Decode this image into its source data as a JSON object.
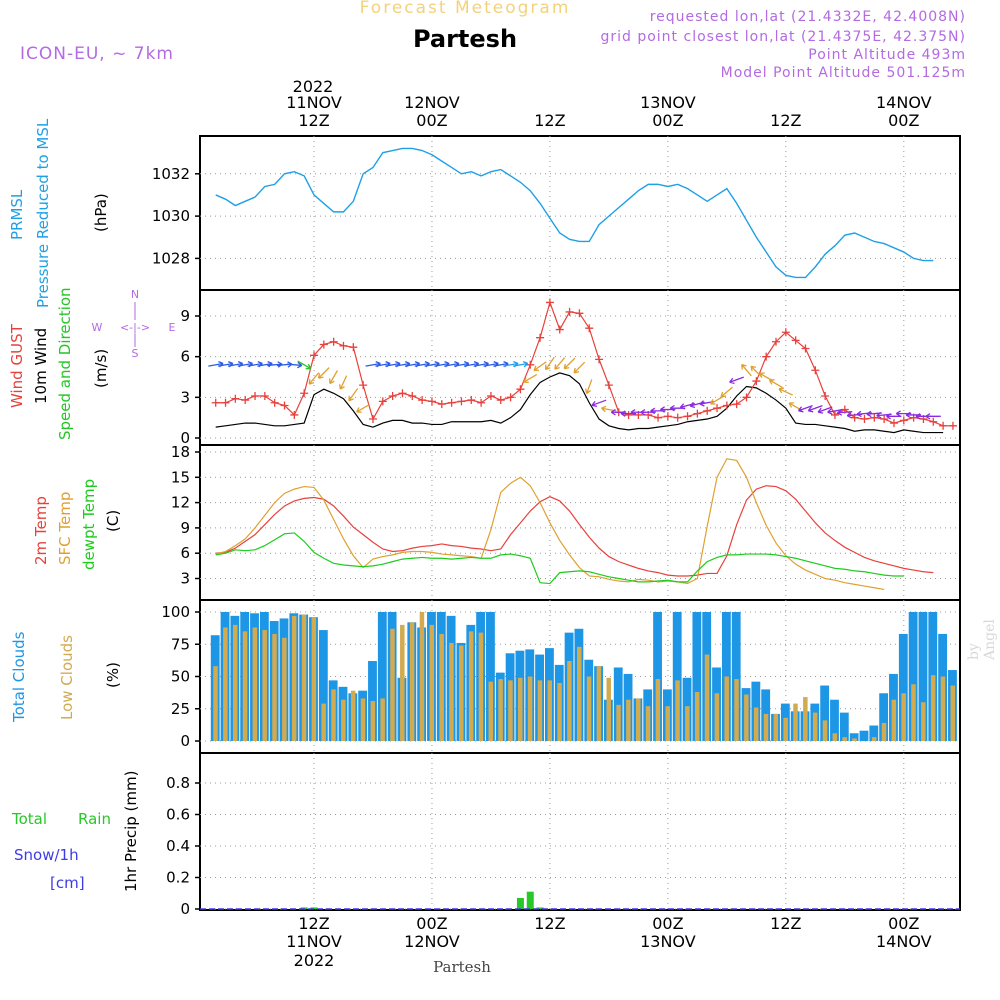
{
  "header": {
    "subtitle": "Forecast Meteogram",
    "location": "Partesh",
    "model": "ICON-EU, ~ 7km",
    "requested": "requested lon,lat (21.4332E, 42.4008N)",
    "grid_point": "grid point closest lon,lat (21.4375E, 42.375N)",
    "point_altitude": "Point Altitude 493m",
    "model_altitude": "Model Point Altitude 501.125m",
    "footer_location": "Partesh",
    "byline": "by Angel"
  },
  "time_axis": {
    "top_year": "2022",
    "top_labels": [
      {
        "t": 15,
        "line1": "11NOV",
        "line2": "12Z"
      },
      {
        "t": 27,
        "line1": "12NOV",
        "line2": "00Z"
      },
      {
        "t": 39,
        "line1": "",
        "line2": "12Z"
      },
      {
        "t": 51,
        "line1": "13NOV",
        "line2": "00Z"
      },
      {
        "t": 63,
        "line1": "",
        "line2": "12Z"
      },
      {
        "t": 75,
        "line1": "14NOV",
        "line2": "00Z"
      }
    ],
    "bottom_labels": [
      {
        "t": 15,
        "line1": "12Z",
        "line2": "11NOV",
        "line3": "2022"
      },
      {
        "t": 27,
        "line1": "00Z",
        "line2": "12NOV",
        "line3": ""
      },
      {
        "t": 39,
        "line1": "12Z",
        "line2": "",
        "line3": ""
      },
      {
        "t": 51,
        "line1": "00Z",
        "line2": "13NOV",
        "line3": ""
      },
      {
        "t": 63,
        "line1": "12Z",
        "line2": "",
        "line3": ""
      },
      {
        "t": 75,
        "line1": "00Z",
        "line2": "14NOV",
        "line3": ""
      }
    ]
  },
  "colors": {
    "pressure": "#1ea0e6",
    "gust": "#e8413c",
    "wind": "#000000",
    "direction": "#24c624",
    "temp": "#e8413c",
    "sfc": "#e0a030",
    "dewpt": "#1ccc1c",
    "total_clouds": "#1e96e6",
    "low_clouds": "#d2aa50",
    "rain": "#28c828",
    "snow": "#3c3ce6",
    "compass": "#b36ae2"
  },
  "panels": {
    "pressure": {
      "labels": [
        "PRMSL",
        "Pressure Reduced to MSL"
      ],
      "unit": "(hPa)"
    },
    "wind": {
      "labels": [
        "Wind GUST",
        "10m Wind",
        "Speed and Direction"
      ],
      "unit": "(m/s)",
      "compass": {
        "n": "N",
        "s": "S",
        "w": "W",
        "e": "E",
        "arrows": "<-|->"
      }
    },
    "temp": {
      "labels": [
        "2m Temp",
        "SFC Temp",
        "dewpt Temp"
      ],
      "unit": "(C)"
    },
    "clouds": {
      "labels": [
        "Total Clouds",
        "Low Clouds"
      ],
      "unit": "(%)"
    },
    "precip": {
      "labels": [
        "Total",
        "Rain",
        "Snow/1h",
        "[cm]"
      ],
      "ylabel": "1hr Precip (mm)"
    }
  },
  "chart_data": [
    {
      "type": "line",
      "title": "PRMSL Pressure Reduced to MSL",
      "ylabel": "(hPa)",
      "ylim": [
        1026.8,
        1033.5
      ],
      "yticks": [
        1028,
        1030,
        1032
      ],
      "x_start": 5,
      "x_step": 1,
      "series": [
        {
          "name": "PRMSL",
          "values": [
            1031.0,
            1030.8,
            1030.5,
            1030.7,
            1030.9,
            1031.4,
            1031.5,
            1032.0,
            1032.1,
            1031.9,
            1031.0,
            1030.6,
            1030.2,
            1030.2,
            1030.7,
            1032.0,
            1032.3,
            1033.0,
            1033.1,
            1033.2,
            1033.2,
            1033.1,
            1032.9,
            1032.6,
            1032.3,
            1032.0,
            1032.1,
            1031.9,
            1032.1,
            1032.2,
            1031.9,
            1031.6,
            1031.2,
            1030.6,
            1029.9,
            1029.2,
            1028.9,
            1028.8,
            1028.8,
            1029.6,
            1030.0,
            1030.4,
            1030.8,
            1031.2,
            1031.5,
            1031.5,
            1031.4,
            1031.5,
            1031.3,
            1031.0,
            1030.7,
            1031.0,
            1031.3,
            1030.6,
            1029.8,
            1029.0,
            1028.3,
            1027.6,
            1027.2,
            1027.1,
            1027.1,
            1027.6,
            1028.2,
            1028.6,
            1029.1,
            1029.2,
            1029.0,
            1028.8,
            1028.7,
            1028.5,
            1028.3,
            1028.0,
            1027.9,
            1027.9
          ]
        }
      ]
    },
    {
      "type": "line",
      "title": "Wind GUST / 10m Wind Speed and Direction",
      "ylabel": "(m/s)",
      "ylim": [
        0,
        10.6
      ],
      "yticks": [
        0,
        3,
        6,
        9
      ],
      "x_start": 5,
      "x_step": 1,
      "series": [
        {
          "name": "Wind GUST",
          "values": [
            2.6,
            2.6,
            2.9,
            2.8,
            3.1,
            3.1,
            2.6,
            2.4,
            1.7,
            3.3,
            6.1,
            6.9,
            7.1,
            6.8,
            6.7,
            3.9,
            1.4,
            2.7,
            3.1,
            3.3,
            3.1,
            2.8,
            2.7,
            2.5,
            2.6,
            2.7,
            2.8,
            2.6,
            3.1,
            2.8,
            3.0,
            3.6,
            5.4,
            7.4,
            10.0,
            8.0,
            9.3,
            9.2,
            8.1,
            5.8,
            3.9,
            1.9,
            1.7,
            1.7,
            1.7,
            1.5,
            1.6,
            1.5,
            1.6,
            1.8,
            2.0,
            2.2,
            2.4,
            2.5,
            3.0,
            4.2,
            6.0,
            7.1,
            7.8,
            7.2,
            6.6,
            5.0,
            3.1,
            1.7,
            2.1,
            1.5,
            1.4,
            1.5,
            1.4,
            1.1,
            1.3,
            1.5,
            1.4,
            1.2,
            0.9,
            0.9
          ]
        },
        {
          "name": "10m Wind",
          "values": [
            0.8,
            0.9,
            1.0,
            1.1,
            1.1,
            1.0,
            0.9,
            0.9,
            1.0,
            1.1,
            3.2,
            3.6,
            3.3,
            2.9,
            2.0,
            1.0,
            0.8,
            1.1,
            1.3,
            1.3,
            1.1,
            1.1,
            1.0,
            1.0,
            1.2,
            1.2,
            1.2,
            1.2,
            1.3,
            1.1,
            1.5,
            2.1,
            3.2,
            4.1,
            4.5,
            4.8,
            4.6,
            4.0,
            2.6,
            1.4,
            0.9,
            0.7,
            0.6,
            0.7,
            0.7,
            0.8,
            0.9,
            1.0,
            1.2,
            1.3,
            1.4,
            1.6,
            2.2,
            3.1,
            3.8,
            3.7,
            3.3,
            2.8,
            2.2,
            1.1,
            1.0,
            1.0,
            0.9,
            0.8,
            0.7,
            0.5,
            0.6,
            0.6,
            0.5,
            0.4,
            0.6,
            0.5,
            0.4,
            0.4,
            0.4
          ]
        }
      ]
    },
    {
      "type": "line",
      "title": "2m Temp / SFC Temp / dewpt Temp",
      "ylabel": "(C)",
      "ylim": [
        1,
        18.5
      ],
      "yticks": [
        3,
        6,
        9,
        12,
        15,
        18
      ],
      "x_start": 5,
      "x_step": 1,
      "series": [
        {
          "name": "2m Temp",
          "values": [
            6.0,
            6.1,
            6.6,
            7.4,
            8.2,
            9.4,
            10.6,
            11.6,
            12.2,
            12.5,
            12.6,
            12.4,
            11.6,
            10.4,
            9.1,
            8.2,
            7.3,
            6.5,
            6.2,
            6.3,
            6.6,
            6.8,
            6.9,
            7.1,
            6.9,
            6.8,
            6.6,
            6.5,
            6.3,
            6.5,
            8.2,
            9.6,
            11.0,
            12.1,
            12.7,
            12.2,
            11.0,
            9.4,
            7.9,
            6.6,
            5.6,
            5.0,
            4.6,
            4.2,
            3.9,
            3.7,
            3.4,
            3.3,
            3.3,
            3.4,
            3.6,
            3.6,
            5.7,
            9.4,
            12.3,
            13.6,
            14.0,
            13.9,
            13.4,
            12.4,
            11.0,
            9.6,
            8.4,
            7.5,
            6.7,
            6.1,
            5.5,
            5.1,
            4.8,
            4.5,
            4.2,
            4.0,
            3.8,
            3.7
          ]
        },
        {
          "name": "SFC Temp",
          "values": [
            5.9,
            6.2,
            6.9,
            7.7,
            9.0,
            10.5,
            12.0,
            13.1,
            13.6,
            13.9,
            13.8,
            12.3,
            10.0,
            7.7,
            5.7,
            4.3,
            5.3,
            5.6,
            5.8,
            6.1,
            6.2,
            6.2,
            6.1,
            5.9,
            5.8,
            5.7,
            5.6,
            5.4,
            8.8,
            13.2,
            14.3,
            15.0,
            14.0,
            12.0,
            9.6,
            7.5,
            5.8,
            4.3,
            3.3,
            3.2,
            2.9,
            2.7,
            2.6,
            2.9,
            2.8,
            2.6,
            2.7,
            2.6,
            2.4,
            3.0,
            9.2,
            15.0,
            17.2,
            17.0,
            15.0,
            12.0,
            9.3,
            7.2,
            5.7,
            4.7,
            4.0,
            3.5,
            3.0,
            2.8,
            2.5,
            2.3,
            2.1,
            1.9,
            1.7
          ]
        },
        {
          "name": "dewpt Temp",
          "values": [
            5.8,
            6.0,
            6.4,
            6.3,
            6.4,
            6.9,
            7.6,
            8.3,
            8.4,
            7.4,
            6.1,
            5.4,
            4.8,
            4.6,
            4.5,
            4.4,
            4.5,
            4.7,
            5.0,
            5.3,
            5.4,
            5.5,
            5.4,
            5.4,
            5.3,
            5.4,
            5.5,
            5.4,
            5.4,
            5.8,
            5.9,
            5.7,
            5.4,
            2.5,
            2.4,
            3.7,
            3.8,
            3.9,
            3.8,
            3.5,
            3.2,
            3.0,
            2.8,
            2.6,
            2.6,
            2.7,
            2.8,
            2.6,
            2.6,
            3.9,
            5.0,
            5.5,
            5.8,
            5.8,
            5.9,
            5.9,
            5.9,
            5.8,
            5.6,
            5.4,
            5.1,
            4.8,
            4.5,
            4.2,
            4.1,
            3.9,
            3.8,
            3.6,
            3.4,
            3.3,
            3.3
          ]
        }
      ]
    },
    {
      "type": "bar",
      "title": "Total Clouds / Low Clouds",
      "ylabel": "(%)",
      "ylim": [
        0,
        104
      ],
      "yticks": [
        0,
        25,
        50,
        75,
        100
      ],
      "x_start": 5,
      "x_step": 1,
      "series": [
        {
          "name": "Total Clouds",
          "values": [
            82,
            100,
            97,
            100,
            99,
            100,
            93,
            95,
            99,
            98,
            96,
            86,
            47,
            42,
            37,
            39,
            62,
            100,
            100,
            49,
            92,
            88,
            100,
            100,
            97,
            76,
            90,
            100,
            100,
            53,
            68,
            70,
            71,
            67,
            72,
            59,
            84,
            87,
            63,
            58,
            32,
            57,
            52,
            33,
            40,
            100,
            40,
            100,
            49,
            100,
            100,
            57,
            100,
            100,
            41,
            46,
            40,
            21,
            29,
            23,
            23,
            29,
            43,
            32,
            22,
            6,
            8,
            12,
            37,
            52,
            83,
            100,
            100,
            100,
            83,
            55
          ]
        },
        {
          "name": "Low Clouds",
          "values": [
            58,
            88,
            90,
            85,
            88,
            86,
            83,
            80,
            97,
            98,
            96,
            29,
            40,
            32,
            39,
            33,
            31,
            33,
            87,
            90,
            92,
            100,
            90,
            83,
            76,
            74,
            85,
            84,
            46,
            48,
            47,
            49,
            50,
            47,
            47,
            45,
            62,
            73,
            50,
            58,
            49,
            28,
            32,
            33,
            27,
            48,
            27,
            47,
            27,
            38,
            67,
            37,
            50,
            48,
            36,
            26,
            21,
            21,
            18,
            29,
            34,
            22,
            16,
            6,
            3,
            2,
            0,
            3,
            14,
            32,
            37,
            44,
            30,
            51,
            50,
            43
          ]
        }
      ]
    },
    {
      "type": "bar",
      "title": "Total Rain / Snow 1hr",
      "ylabel": "1hr Precip (mm)",
      "ylim": [
        0,
        1.0
      ],
      "yticks": [
        0,
        0.2,
        0.4,
        0.6,
        0.8
      ],
      "x_start": 5,
      "x_step": 1,
      "series": [
        {
          "name": "Total Rain",
          "values": [
            0,
            0,
            0,
            0,
            0,
            0,
            0,
            0,
            0,
            0.01,
            0.01,
            0,
            0,
            0,
            0,
            0,
            0,
            0,
            0,
            0,
            0,
            0,
            0,
            0,
            0,
            0,
            0,
            0,
            0,
            0,
            0,
            0.07,
            0.11,
            0.01,
            0,
            0,
            0,
            0,
            0,
            0,
            0,
            0,
            0,
            0,
            0,
            0,
            0,
            0,
            0,
            0,
            0,
            0,
            0,
            0,
            0,
            0,
            0,
            0,
            0,
            0,
            0,
            0,
            0,
            0,
            0,
            0,
            0,
            0,
            0,
            0,
            0,
            0,
            0,
            0
          ]
        },
        {
          "name": "Snow/1h",
          "values": [
            0,
            0,
            0,
            0,
            0,
            0,
            0,
            0,
            0,
            0,
            0,
            0,
            0,
            0,
            0,
            0,
            0,
            0,
            0,
            0,
            0,
            0,
            0,
            0,
            0,
            0,
            0,
            0,
            0,
            0,
            0,
            0,
            0,
            0,
            0,
            0,
            0,
            0,
            0,
            0,
            0,
            0,
            0,
            0,
            0,
            0,
            0,
            0,
            0,
            0,
            0,
            0,
            0,
            0,
            0,
            0,
            0,
            0,
            0,
            0,
            0,
            0,
            0,
            0,
            0,
            0,
            0,
            0,
            0,
            0,
            0,
            0,
            0,
            0,
            0
          ]
        }
      ]
    },
    {
      "type": "vector",
      "title": "10m Wind Direction (degrees, direction wind blows toward; 0=N, 90=E)",
      "x_start": 5,
      "x_step": 1,
      "series": [
        {
          "name": "direction_toward",
          "values": [
            80,
            80,
            80,
            80,
            80,
            80,
            85,
            85,
            95,
            120,
            220,
            225,
            210,
            205,
            215,
            240,
            80,
            80,
            80,
            80,
            80,
            80,
            80,
            80,
            80,
            80,
            80,
            80,
            80,
            80,
            80,
            80,
            240,
            235,
            215,
            220,
            225,
            225,
            200,
            250,
            280,
            270,
            270,
            270,
            270,
            270,
            270,
            270,
            255,
            255,
            260,
            240,
            230,
            250,
            320,
            315,
            300,
            300,
            295,
            300,
            250,
            250,
            250,
            260,
            265,
            265,
            265,
            265,
            265,
            270,
            270,
            270,
            270,
            270
          ]
        }
      ]
    }
  ]
}
